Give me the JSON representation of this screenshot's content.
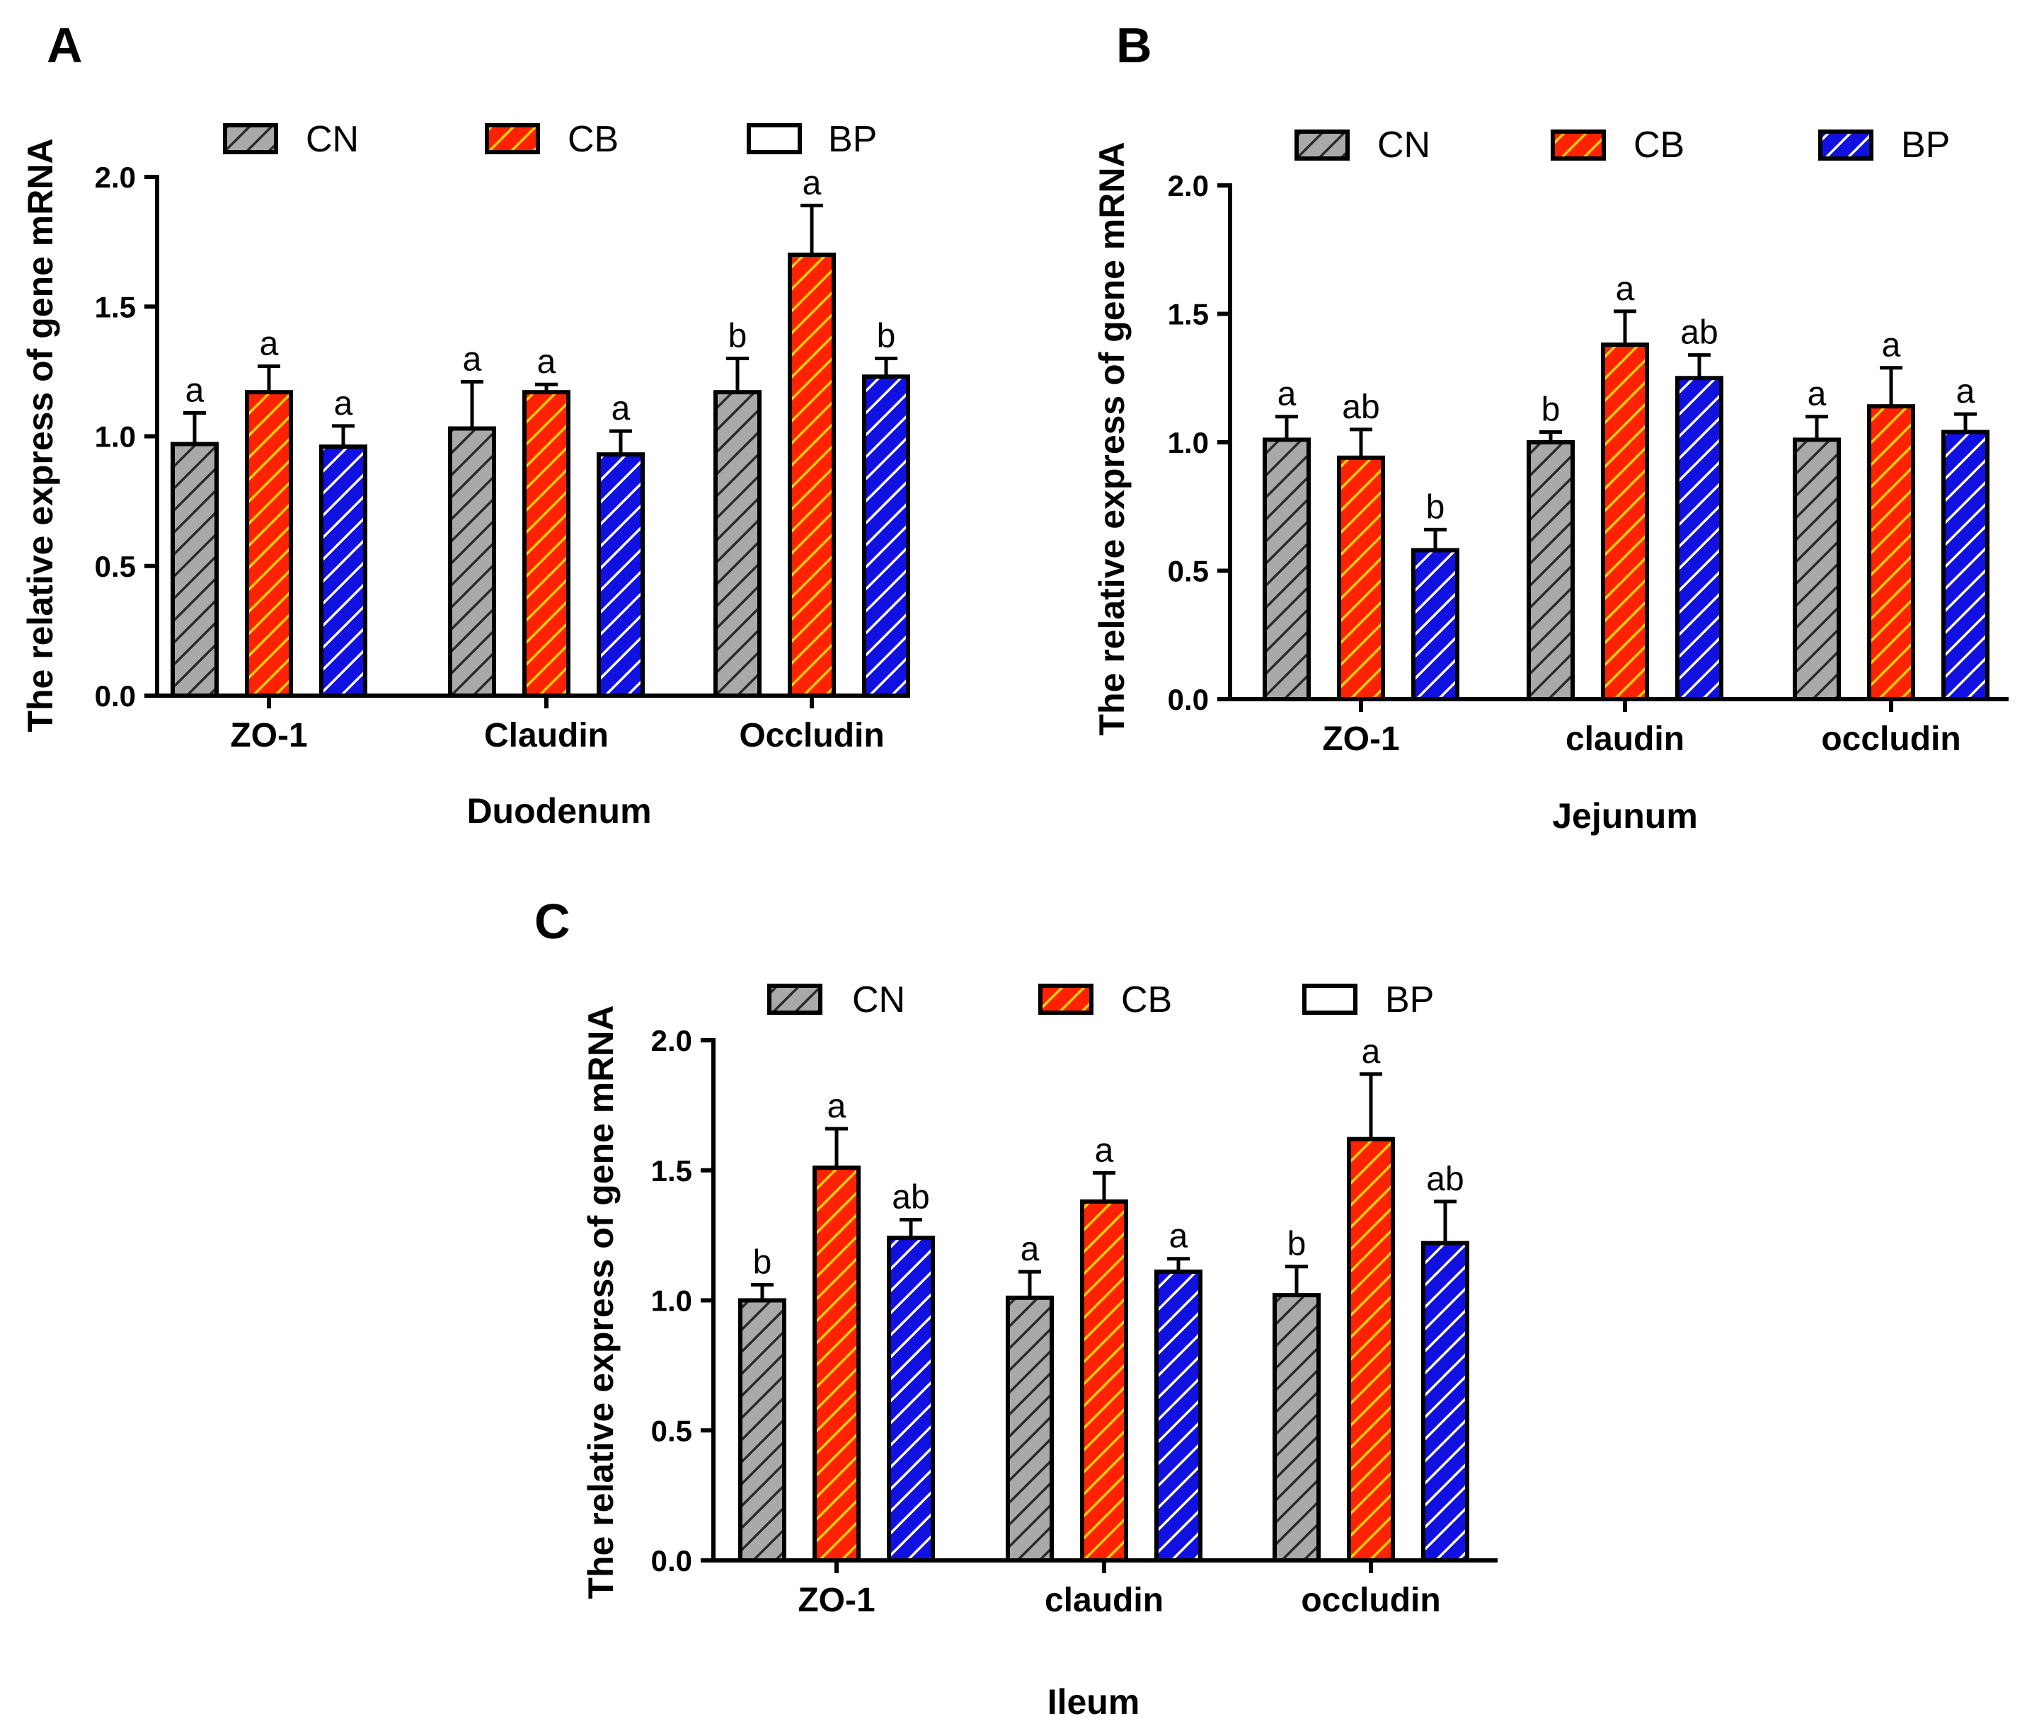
{
  "colors": {
    "cn_fill": "#a9a9a9",
    "cb_fill": "#ff2200",
    "cb_stripe": "#ffd200",
    "bp_fill": "#1010e0",
    "bp_stripe": "#ffffff",
    "axis": "#000000"
  },
  "chart_data": [
    {
      "panel": "A",
      "type": "bar",
      "title": "",
      "xlabel": "Duodenum",
      "ylabel": "The relative express of gene mRNA",
      "ylim": [
        0,
        2.0
      ],
      "yticks": [
        "0.0",
        "0.5",
        "1.0",
        "1.5",
        "2.0"
      ],
      "categories": [
        "ZO-1",
        "Claudin",
        "Occludin"
      ],
      "legend": [
        "CN",
        "CB",
        "BP"
      ],
      "legend_style": [
        "cn",
        "cb",
        "empty"
      ],
      "series": [
        {
          "name": "CN",
          "style": "cn",
          "values": [
            0.97,
            1.03,
            1.17
          ],
          "errors": [
            0.12,
            0.18,
            0.13
          ],
          "labels": [
            "a",
            "a",
            "b"
          ]
        },
        {
          "name": "CB",
          "style": "cb",
          "values": [
            1.17,
            1.17,
            1.7
          ],
          "errors": [
            0.1,
            0.03,
            0.19
          ],
          "labels": [
            "a",
            "a",
            "a"
          ]
        },
        {
          "name": "BP",
          "style": "bp",
          "values": [
            0.96,
            0.93,
            1.23
          ],
          "errors": [
            0.08,
            0.09,
            0.07
          ],
          "labels": [
            "a",
            "a",
            "b"
          ]
        }
      ]
    },
    {
      "panel": "B",
      "type": "bar",
      "title": "",
      "xlabel": "Jejunum",
      "ylabel": "The relative express of gene mRNA",
      "ylim": [
        0,
        2.0
      ],
      "yticks": [
        "0.0",
        "0.5",
        "1.0",
        "1.5",
        "2.0"
      ],
      "categories": [
        "ZO-1",
        "claudin",
        "occludin"
      ],
      "legend": [
        "CN",
        "CB",
        "BP"
      ],
      "legend_style": [
        "cn",
        "cb",
        "bp"
      ],
      "series": [
        {
          "name": "CN",
          "style": "cn",
          "values": [
            1.01,
            1.0,
            1.01
          ],
          "errors": [
            0.09,
            0.04,
            0.09
          ],
          "labels": [
            "a",
            "b",
            "a"
          ]
        },
        {
          "name": "CB",
          "style": "cb",
          "values": [
            0.94,
            1.38,
            1.14
          ],
          "errors": [
            0.11,
            0.13,
            0.15
          ],
          "labels": [
            "ab",
            "a",
            "a"
          ]
        },
        {
          "name": "BP",
          "style": "bp",
          "values": [
            0.58,
            1.25,
            1.04
          ],
          "errors": [
            0.08,
            0.09,
            0.07
          ],
          "labels": [
            "b",
            "ab",
            "a"
          ]
        }
      ]
    },
    {
      "panel": "C",
      "type": "bar",
      "title": "",
      "xlabel": "Ileum",
      "ylabel": "The relative express of gene mRNA",
      "ylim": [
        0,
        2.0
      ],
      "yticks": [
        "0.0",
        "0.5",
        "1.0",
        "1.5",
        "2.0"
      ],
      "categories": [
        "ZO-1",
        "claudin",
        "occludin"
      ],
      "legend": [
        "CN",
        "CB",
        "BP"
      ],
      "legend_style": [
        "cn",
        "cb",
        "empty"
      ],
      "series": [
        {
          "name": "CN",
          "style": "cn",
          "values": [
            1.0,
            1.01,
            1.02
          ],
          "errors": [
            0.06,
            0.1,
            0.11
          ],
          "labels": [
            "b",
            "a",
            "b"
          ]
        },
        {
          "name": "CB",
          "style": "cb",
          "values": [
            1.51,
            1.38,
            1.62
          ],
          "errors": [
            0.15,
            0.11,
            0.25
          ],
          "labels": [
            "a",
            "a",
            "a"
          ]
        },
        {
          "name": "BP",
          "style": "bp",
          "values": [
            1.24,
            1.11,
            1.22
          ],
          "errors": [
            0.07,
            0.05,
            0.16
          ],
          "labels": [
            "ab",
            "a",
            "ab"
          ]
        }
      ]
    }
  ]
}
